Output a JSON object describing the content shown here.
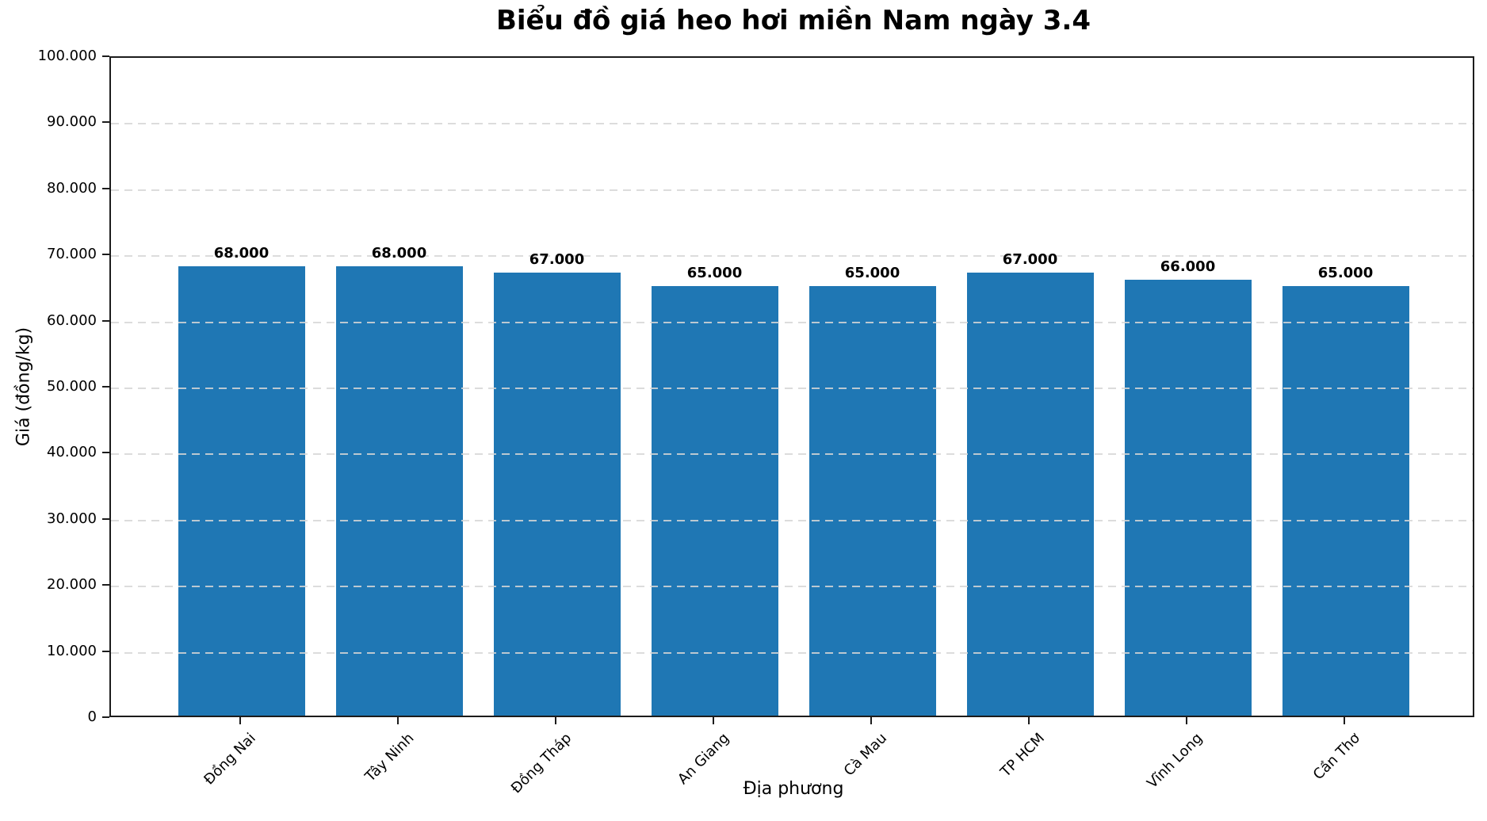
{
  "chart_data": {
    "type": "bar",
    "title": "Biểu đồ giá heo hơi miền Nam ngày 3.4",
    "xlabel": "Địa phương",
    "ylabel": "Giá (đồng/kg)",
    "categories": [
      "Đồng Nai",
      "Tây Ninh",
      "Đồng Tháp",
      "An Giang",
      "Cà Mau",
      "TP HCM",
      "Vĩnh Long",
      "Cần Thơ"
    ],
    "values": [
      68000,
      68000,
      67000,
      65000,
      65000,
      67000,
      66000,
      65000
    ],
    "bar_labels": [
      "68.000",
      "68.000",
      "67.000",
      "65.000",
      "65.000",
      "67.000",
      "66.000",
      "65.000"
    ],
    "ylim": [
      0,
      100000
    ],
    "ytick_step": 10000,
    "ytick_labels": [
      "0",
      "10.000",
      "20.000",
      "30.000",
      "40.000",
      "50.000",
      "60.000",
      "70.000",
      "80.000",
      "90.000",
      "100.000"
    ],
    "x_tick_rotation_deg": 45,
    "grid": "horizontal-dashed",
    "legend": "none",
    "colors": {
      "bar": "#1f77b4",
      "grid": "#d6d6d6",
      "axis": "#1c1c1c",
      "text": "#000000",
      "background": "#ffffff"
    }
  }
}
